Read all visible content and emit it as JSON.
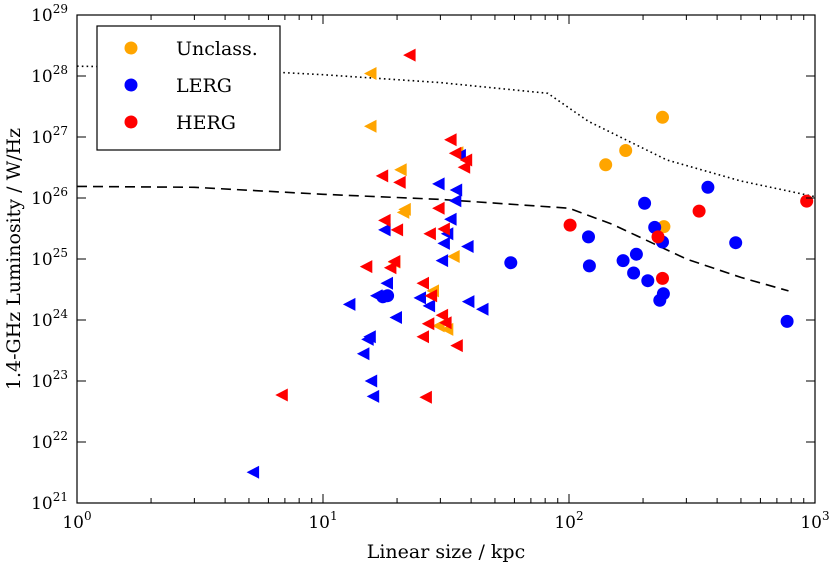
{
  "chart_data": {
    "type": "scatter",
    "title": "",
    "xlabel": "Linear size / kpc",
    "ylabel": "1.4-GHz Luminosity / W/Hz",
    "xscale": "log",
    "yscale": "log",
    "xlim": [
      1,
      1000
    ],
    "ylim": [
      1e+21,
      1e+29
    ],
    "x_ticks": [
      {
        "base": "10",
        "exp": "0",
        "value": 1
      },
      {
        "base": "10",
        "exp": "1",
        "value": 10
      },
      {
        "base": "10",
        "exp": "2",
        "value": 100
      },
      {
        "base": "10",
        "exp": "3",
        "value": 1000
      }
    ],
    "y_ticks": [
      {
        "base": "10",
        "exp": "21",
        "value": 1e+21
      },
      {
        "base": "10",
        "exp": "22",
        "value": 1e+22
      },
      {
        "base": "10",
        "exp": "23",
        "value": 1e+23
      },
      {
        "base": "10",
        "exp": "24",
        "value": 1e+24
      },
      {
        "base": "10",
        "exp": "25",
        "value": 1e+25
      },
      {
        "base": "10",
        "exp": "26",
        "value": 1e+26
      },
      {
        "base": "10",
        "exp": "27",
        "value": 1e+27
      },
      {
        "base": "10",
        "exp": "28",
        "value": 1e+28
      },
      {
        "base": "10",
        "exp": "29",
        "value": 1e+29
      }
    ],
    "legend": {
      "placement": "top-left",
      "entries": [
        {
          "label": "Unclass.",
          "color": "#FFA500"
        },
        {
          "label": "LERG",
          "color": "#0000FF"
        },
        {
          "label": "HERG",
          "color": "#FF0000"
        }
      ]
    },
    "marker_note": "circle = measured, left-pointing triangle = upper limit on size",
    "series": [
      {
        "name": "Unclass.",
        "color": "#FFA500",
        "circles": [
          [
            141,
            3.5e+26
          ],
          [
            170,
            6e+26
          ],
          [
            240,
            2.1e+27
          ],
          [
            243,
            3.4e+25
          ]
        ],
        "triangles": [
          [
            15.6,
            1.1e+28
          ],
          [
            15.6,
            1.5e+27
          ],
          [
            20.7,
            2.9e+26
          ],
          [
            21.5,
            6.5e+25
          ],
          [
            21.2,
            5.8e+25
          ],
          [
            19.5,
            8.9e+24
          ],
          [
            28,
            3e+24
          ],
          [
            29.5,
            8e+23
          ],
          [
            32,
            7e+23
          ],
          [
            34,
            1.1e+25
          ],
          [
            35.2,
            5.5e+26
          ],
          [
            27.5,
            2.5e+24
          ]
        ]
      },
      {
        "name": "LERG",
        "color": "#0000FF",
        "circles": [
          [
            58,
            8.7e+24
          ],
          [
            120,
            2.3e+25
          ],
          [
            121,
            7.7e+24
          ],
          [
            166,
            9.4e+24
          ],
          [
            183,
            5.9e+24
          ],
          [
            188,
            1.2e+25
          ],
          [
            203,
            8.2e+25
          ],
          [
            209,
            4.4e+24
          ],
          [
            223,
            3.3e+25
          ],
          [
            234,
            2.1e+24
          ],
          [
            242,
            2.7e+24
          ],
          [
            240,
            1.9e+25
          ],
          [
            367,
            1.5e+26
          ],
          [
            476,
            1.85e+25
          ],
          [
            770,
            9.5e+23
          ],
          [
            18.3,
            2.5e+24
          ],
          [
            17.5,
            2.4e+24
          ]
        ],
        "triangles": [
          [
            5.2,
            3.2e+21
          ],
          [
            12.8,
            1.8e+24
          ],
          [
            14.6,
            2.8e+23
          ],
          [
            15.2,
            4.8e+23
          ],
          [
            15.5,
            5.3e+23
          ],
          [
            15.7,
            1e+23
          ],
          [
            16,
            5.6e+22
          ],
          [
            16.5,
            2.5e+24
          ],
          [
            17.8,
            3e+25
          ],
          [
            18.2,
            4e+24
          ],
          [
            19.8,
            1.1e+24
          ],
          [
            24.8,
            2.3e+24
          ],
          [
            27,
            1.7e+24
          ],
          [
            29.5,
            1.7e+26
          ],
          [
            30.5,
            9.4e+24
          ],
          [
            31,
            1.8e+25
          ],
          [
            32,
            2.6e+25
          ],
          [
            33,
            4.5e+25
          ],
          [
            34.5,
            9e+25
          ],
          [
            34.8,
            1.35e+26
          ],
          [
            36,
            5e+26
          ],
          [
            38.7,
            1.6e+25
          ],
          [
            39,
            2e+24
          ],
          [
            44.5,
            1.5e+24
          ]
        ]
      },
      {
        "name": "HERG",
        "color": "#FF0000",
        "circles": [
          [
            101,
            3.6e+25
          ],
          [
            230,
            2.3e+25
          ],
          [
            240,
            4.8e+24
          ],
          [
            338,
            6.1e+25
          ],
          [
            925,
            8.9e+25
          ]
        ],
        "triangles": [
          [
            6.8,
            5.9e+22
          ],
          [
            15,
            7.5e+24
          ],
          [
            17.4,
            2.3e+26
          ],
          [
            17.8,
            4.3e+25
          ],
          [
            18.8,
            7.2e+24
          ],
          [
            19.5,
            9.1e+24
          ],
          [
            20,
            3e+25
          ],
          [
            20.5,
            1.8e+26
          ],
          [
            22.5,
            2.2e+28
          ],
          [
            25.5,
            4e+24
          ],
          [
            25.5,
            5.3e+23
          ],
          [
            26.2,
            5.4e+22
          ],
          [
            26.8,
            8.7e+23
          ],
          [
            27.2,
            2.6e+25
          ],
          [
            27.5,
            2.5e+24
          ],
          [
            29.5,
            6.8e+25
          ],
          [
            30.5,
            1.2e+24
          ],
          [
            31,
            3.1e+25
          ],
          [
            31.5,
            9e+23
          ],
          [
            33,
            9e+26
          ],
          [
            34.5,
            5.4e+26
          ],
          [
            35,
            3.8e+23
          ],
          [
            37.5,
            3.2e+26
          ],
          [
            38.2,
            4.2e+26
          ]
        ]
      }
    ],
    "lines": [
      {
        "name": "dotted",
        "style": "dotted",
        "points": [
          [
            1,
            1.45e+28
          ],
          [
            3,
            1.35e+28
          ],
          [
            10,
            1.05e+28
          ],
          [
            30,
            7.8e+27
          ],
          [
            82,
            5.2e+27
          ],
          [
            120,
            1.8e+27
          ],
          [
            250,
            4.2e+26
          ],
          [
            500,
            1.9e+26
          ],
          [
            1000,
            1.05e+26
          ]
        ]
      },
      {
        "name": "dashed",
        "style": "dashed",
        "points": [
          [
            1,
            1.55e+26
          ],
          [
            3,
            1.5e+26
          ],
          [
            10,
            1.15e+26
          ],
          [
            30,
            9.5e+25
          ],
          [
            100,
            6.8e+25
          ],
          [
            150,
            3.7e+25
          ],
          [
            300,
            1e+25
          ],
          [
            500,
            5e+24
          ],
          [
            780,
            3e+24
          ]
        ]
      }
    ]
  }
}
